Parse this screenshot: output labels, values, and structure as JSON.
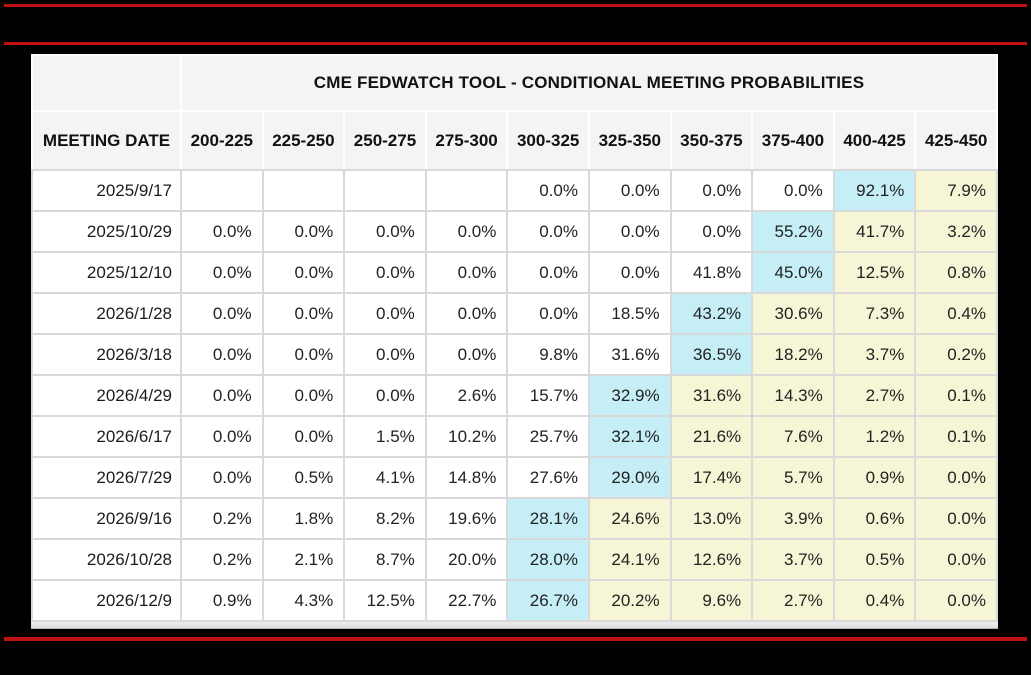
{
  "page": {
    "background_color": "#000000",
    "divider_color": "#c01212"
  },
  "chart_data": {
    "type": "table",
    "title": "CME FEDWATCH TOOL - CONDITIONAL MEETING PROBABILITIES",
    "row_header_label": "MEETING DATE",
    "columns": [
      "200-225",
      "225-250",
      "250-275",
      "275-300",
      "300-325",
      "325-350",
      "350-375",
      "375-400",
      "400-425",
      "425-450"
    ],
    "rows": [
      {
        "date": "2025/9/17",
        "values": [
          "",
          "",
          "",
          "",
          "0.0%",
          "0.0%",
          "0.0%",
          "0.0%",
          "92.1%",
          "7.9%"
        ],
        "max_col": 8
      },
      {
        "date": "2025/10/29",
        "values": [
          "0.0%",
          "0.0%",
          "0.0%",
          "0.0%",
          "0.0%",
          "0.0%",
          "0.0%",
          "55.2%",
          "41.7%",
          "3.2%"
        ],
        "max_col": 7
      },
      {
        "date": "2025/12/10",
        "values": [
          "0.0%",
          "0.0%",
          "0.0%",
          "0.0%",
          "0.0%",
          "0.0%",
          "41.8%",
          "45.0%",
          "12.5%",
          "0.8%"
        ],
        "max_col": 7
      },
      {
        "date": "2026/1/28",
        "values": [
          "0.0%",
          "0.0%",
          "0.0%",
          "0.0%",
          "0.0%",
          "18.5%",
          "43.2%",
          "30.6%",
          "7.3%",
          "0.4%"
        ],
        "max_col": 6
      },
      {
        "date": "2026/3/18",
        "values": [
          "0.0%",
          "0.0%",
          "0.0%",
          "0.0%",
          "9.8%",
          "31.6%",
          "36.5%",
          "18.2%",
          "3.7%",
          "0.2%"
        ],
        "max_col": 6
      },
      {
        "date": "2026/4/29",
        "values": [
          "0.0%",
          "0.0%",
          "0.0%",
          "2.6%",
          "15.7%",
          "32.9%",
          "31.6%",
          "14.3%",
          "2.7%",
          "0.1%"
        ],
        "max_col": 5
      },
      {
        "date": "2026/6/17",
        "values": [
          "0.0%",
          "0.0%",
          "1.5%",
          "10.2%",
          "25.7%",
          "32.1%",
          "21.6%",
          "7.6%",
          "1.2%",
          "0.1%"
        ],
        "max_col": 5
      },
      {
        "date": "2026/7/29",
        "values": [
          "0.0%",
          "0.5%",
          "4.1%",
          "14.8%",
          "27.6%",
          "29.0%",
          "17.4%",
          "5.7%",
          "0.9%",
          "0.0%"
        ],
        "max_col": 5
      },
      {
        "date": "2026/9/16",
        "values": [
          "0.2%",
          "1.8%",
          "8.2%",
          "19.6%",
          "28.1%",
          "24.6%",
          "13.0%",
          "3.9%",
          "0.6%",
          "0.0%"
        ],
        "max_col": 4
      },
      {
        "date": "2026/10/28",
        "values": [
          "0.2%",
          "2.1%",
          "8.7%",
          "20.0%",
          "28.0%",
          "24.1%",
          "12.6%",
          "3.7%",
          "0.5%",
          "0.0%"
        ],
        "max_col": 4
      },
      {
        "date": "2026/12/9",
        "values": [
          "0.9%",
          "4.3%",
          "12.5%",
          "22.7%",
          "26.7%",
          "20.2%",
          "9.6%",
          "2.7%",
          "0.4%",
          "0.0%"
        ],
        "max_col": 4
      }
    ],
    "layout_hints": {
      "max_cell_color": "#c6eef7",
      "cells_right_of_max_color": "#f6f6d6",
      "header_bg_color": "#f4f4f4",
      "grid_on": true
    }
  }
}
